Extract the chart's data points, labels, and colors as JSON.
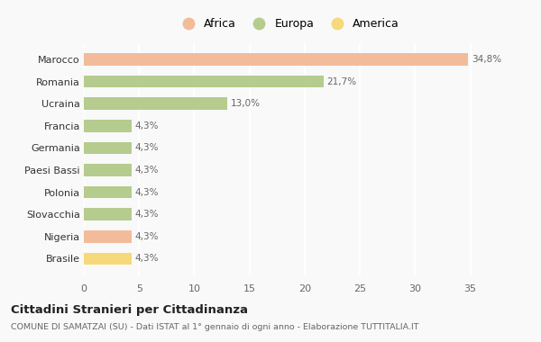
{
  "countries": [
    "Marocco",
    "Romania",
    "Ucraina",
    "Francia",
    "Germania",
    "Paesi Bassi",
    "Polonia",
    "Slovacchia",
    "Nigeria",
    "Brasile"
  ],
  "values": [
    34.8,
    21.7,
    13.0,
    4.3,
    4.3,
    4.3,
    4.3,
    4.3,
    4.3,
    4.3
  ],
  "labels": [
    "34,8%",
    "21,7%",
    "13,0%",
    "4,3%",
    "4,3%",
    "4,3%",
    "4,3%",
    "4,3%",
    "4,3%",
    "4,3%"
  ],
  "colors": [
    "#F2BC9A",
    "#B5CC8E",
    "#B5CC8E",
    "#B5CC8E",
    "#B5CC8E",
    "#B5CC8E",
    "#B5CC8E",
    "#B5CC8E",
    "#F2BC9A",
    "#F5D97A"
  ],
  "legend": [
    {
      "label": "Africa",
      "color": "#F2BC9A"
    },
    {
      "label": "Europa",
      "color": "#B5CC8E"
    },
    {
      "label": "America",
      "color": "#F5D97A"
    }
  ],
  "title": "Cittadini Stranieri per Cittadinanza",
  "subtitle": "COMUNE DI SAMATZAI (SU) - Dati ISTAT al 1° gennaio di ogni anno - Elaborazione TUTTITALIA.IT",
  "xlim": [
    0,
    37
  ],
  "xticks": [
    0,
    5,
    10,
    15,
    20,
    25,
    30,
    35
  ],
  "background_color": "#f9f9f9",
  "grid_color": "#ffffff",
  "bar_height": 0.55
}
